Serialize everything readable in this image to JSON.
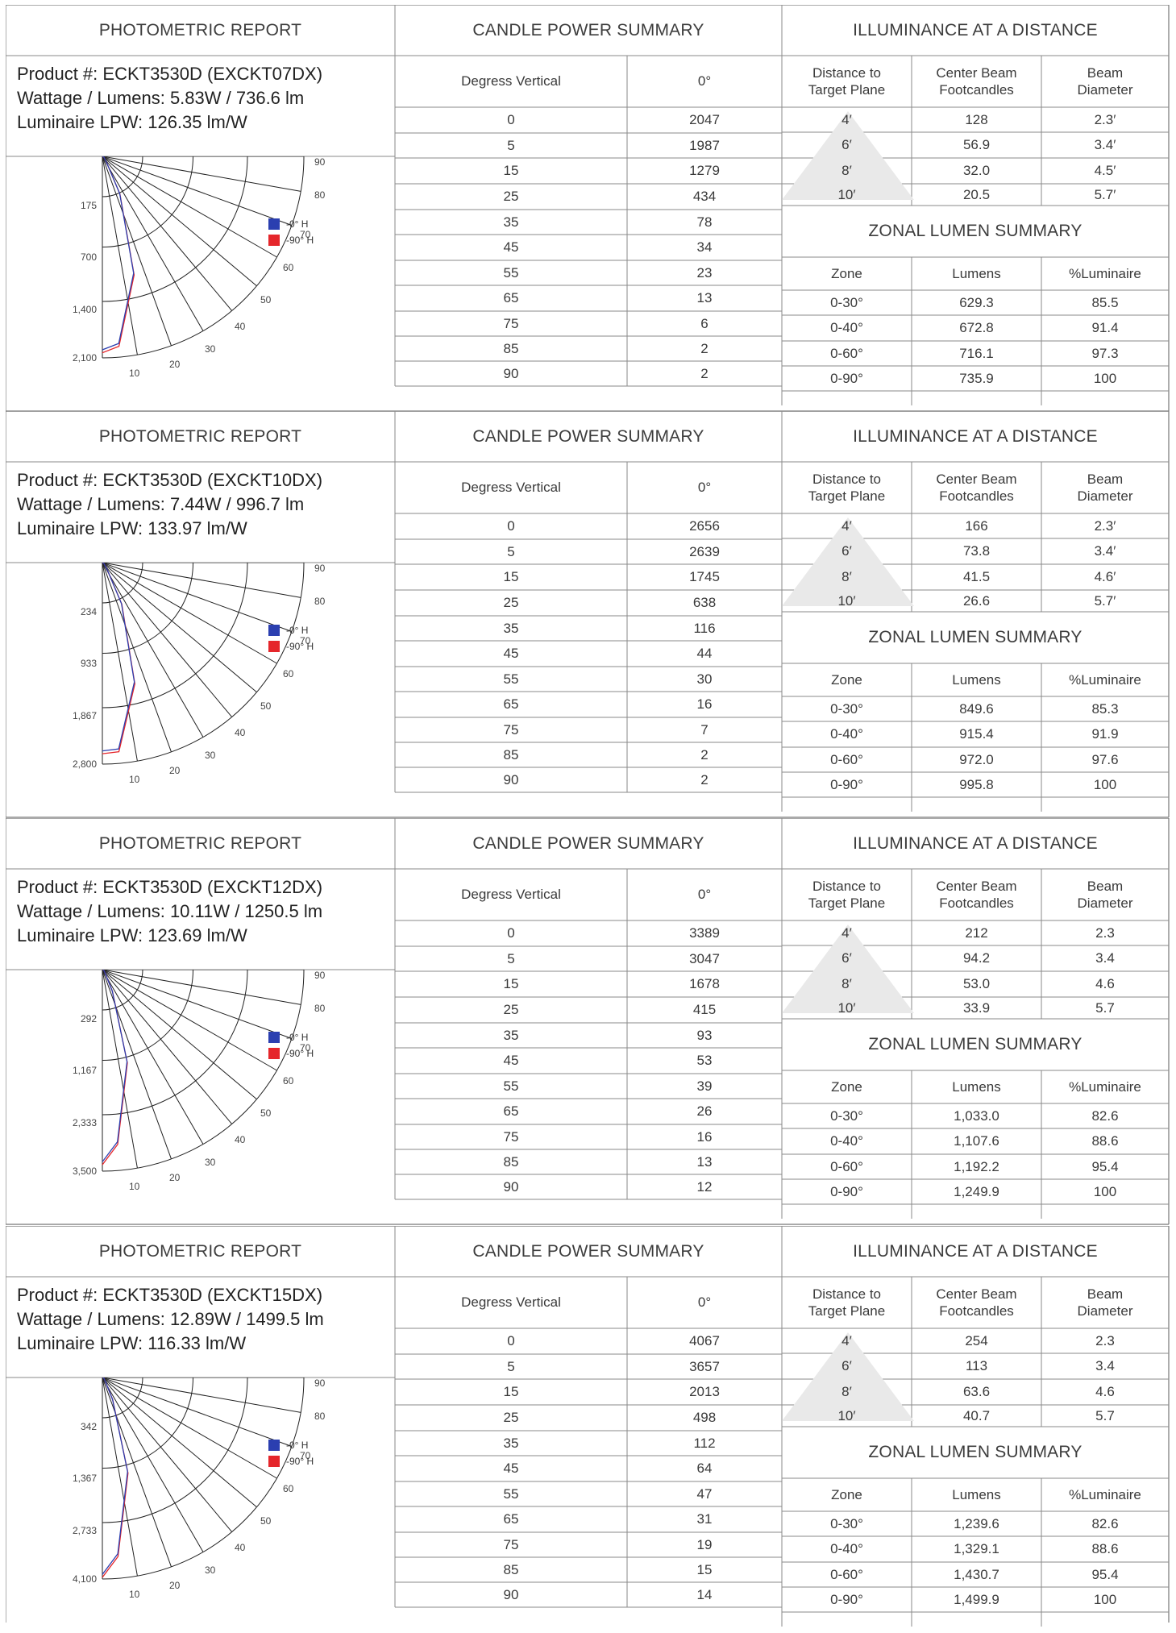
{
  "headers": {
    "photometric": "PHOTOMETRIC REPORT",
    "candle": "CANDLE POWER SUMMARY",
    "illuminance": "ILLUMINANCE AT A DISTANCE",
    "zonal": "ZONAL LUMEN SUMMARY"
  },
  "col_labels": {
    "degrees_vertical": "Degress Vertical",
    "zero_deg": "0°",
    "distance": [
      "Distance to",
      "Target Plane"
    ],
    "center_beam": [
      "Center Beam",
      "Footcandles"
    ],
    "beam_diameter": [
      "Beam",
      "Diameter"
    ],
    "zone": "Zone",
    "lumens": "Lumens",
    "pct_luminaire": "%Luminaire"
  },
  "legend": {
    "h0": "-0° H",
    "h90": "-90° H",
    "h0_color": "#2b3fb0",
    "h90_color": "#e5262b"
  },
  "polar_angle_labels": [
    "90",
    "80",
    "70",
    "60",
    "50",
    "40",
    "30",
    "20",
    "10"
  ],
  "reports": [
    {
      "product": "Product #:  ECKT3530D (EXCKT07DX)",
      "wattage": "Wattage / Lumens:  5.83W / 736.6 lm",
      "lpw": "Luminaire LPW:  126.35 lm/W",
      "polar_radial_labels": [
        "175",
        "700",
        "1,400",
        "2,100"
      ],
      "candle": [
        [
          "0",
          "2047"
        ],
        [
          "5",
          "1987"
        ],
        [
          "15",
          "1279"
        ],
        [
          "25",
          "434"
        ],
        [
          "35",
          "78"
        ],
        [
          "45",
          "34"
        ],
        [
          "55",
          "23"
        ],
        [
          "65",
          "13"
        ],
        [
          "75",
          "6"
        ],
        [
          "85",
          "2"
        ],
        [
          "90",
          "2"
        ]
      ],
      "illum": [
        [
          "4′",
          "128",
          "2.3′"
        ],
        [
          "6′",
          "56.9",
          "3.4′"
        ],
        [
          "8′",
          "32.0",
          "4.5′"
        ],
        [
          "10′",
          "20.5",
          "5.7′"
        ]
      ],
      "zonal": [
        [
          "0-30°",
          "629.3",
          "85.5"
        ],
        [
          "0-40°",
          "672.8",
          "91.4"
        ],
        [
          "0-60°",
          "716.1",
          "97.3"
        ],
        [
          "0-90°",
          "735.9",
          "100"
        ]
      ]
    },
    {
      "product": "Product #:  ECKT3530D (EXCKT10DX)",
      "wattage": "Wattage / Lumens:  7.44W / 996.7 lm",
      "lpw": "Luminaire LPW:  133.97 lm/W",
      "polar_radial_labels": [
        "234",
        "933",
        "1,867",
        "2,800"
      ],
      "candle": [
        [
          "0",
          "2656"
        ],
        [
          "5",
          "2639"
        ],
        [
          "15",
          "1745"
        ],
        [
          "25",
          "638"
        ],
        [
          "35",
          "116"
        ],
        [
          "45",
          "44"
        ],
        [
          "55",
          "30"
        ],
        [
          "65",
          "16"
        ],
        [
          "75",
          "7"
        ],
        [
          "85",
          "2"
        ],
        [
          "90",
          "2"
        ]
      ],
      "illum": [
        [
          "4′",
          "166",
          "2.3′"
        ],
        [
          "6′",
          "73.8",
          "3.4′"
        ],
        [
          "8′",
          "41.5",
          "4.6′"
        ],
        [
          "10′",
          "26.6",
          "5.7′"
        ]
      ],
      "zonal": [
        [
          "0-30°",
          "849.6",
          "85.3"
        ],
        [
          "0-40°",
          "915.4",
          "91.9"
        ],
        [
          "0-60°",
          "972.0",
          "97.6"
        ],
        [
          "0-90°",
          "995.8",
          "100"
        ]
      ]
    },
    {
      "product": "Product #:  ECKT3530D (EXCKT12DX)",
      "wattage": "Wattage / Lumens:  10.11W / 1250.5 lm",
      "lpw": "Luminaire LPW:  123.69 lm/W",
      "polar_radial_labels": [
        "292",
        "1,167",
        "2,333",
        "3,500"
      ],
      "candle": [
        [
          "0",
          "3389"
        ],
        [
          "5",
          "3047"
        ],
        [
          "15",
          "1678"
        ],
        [
          "25",
          "415"
        ],
        [
          "35",
          "93"
        ],
        [
          "45",
          "53"
        ],
        [
          "55",
          "39"
        ],
        [
          "65",
          "26"
        ],
        [
          "75",
          "16"
        ],
        [
          "85",
          "13"
        ],
        [
          "90",
          "12"
        ]
      ],
      "illum": [
        [
          "4′",
          "212",
          "2.3"
        ],
        [
          "6′",
          "94.2",
          "3.4"
        ],
        [
          "8′",
          "53.0",
          "4.6"
        ],
        [
          "10′",
          "33.9",
          "5.7"
        ]
      ],
      "zonal": [
        [
          "0-30°",
          "1,033.0",
          "82.6"
        ],
        [
          "0-40°",
          "1,107.6",
          "88.6"
        ],
        [
          "0-60°",
          "1,192.2",
          "95.4"
        ],
        [
          "0-90°",
          "1,249.9",
          "100"
        ]
      ]
    },
    {
      "product": "Product #:  ECKT3530D (EXCKT15DX)",
      "wattage": "Wattage / Lumens:  12.89W / 1499.5 lm",
      "lpw": "Luminaire LPW:  116.33 lm/W",
      "polar_radial_labels": [
        "342",
        "1,367",
        "2,733",
        "4,100"
      ],
      "candle": [
        [
          "0",
          "4067"
        ],
        [
          "5",
          "3657"
        ],
        [
          "15",
          "2013"
        ],
        [
          "25",
          "498"
        ],
        [
          "35",
          "112"
        ],
        [
          "45",
          "64"
        ],
        [
          "55",
          "47"
        ],
        [
          "65",
          "31"
        ],
        [
          "75",
          "19"
        ],
        [
          "85",
          "15"
        ],
        [
          "90",
          "14"
        ]
      ],
      "illum": [
        [
          "4′",
          "254",
          "2.3"
        ],
        [
          "6′",
          "113",
          "3.4"
        ],
        [
          "8′",
          "63.6",
          "4.6"
        ],
        [
          "10′",
          "40.7",
          "5.7"
        ]
      ],
      "zonal": [
        [
          "0-30°",
          "1,239.6",
          "82.6"
        ],
        [
          "0-40°",
          "1,329.1",
          "88.6"
        ],
        [
          "0-60°",
          "1,430.7",
          "95.4"
        ],
        [
          "0-90°",
          "1,499.9",
          "100"
        ]
      ]
    }
  ]
}
